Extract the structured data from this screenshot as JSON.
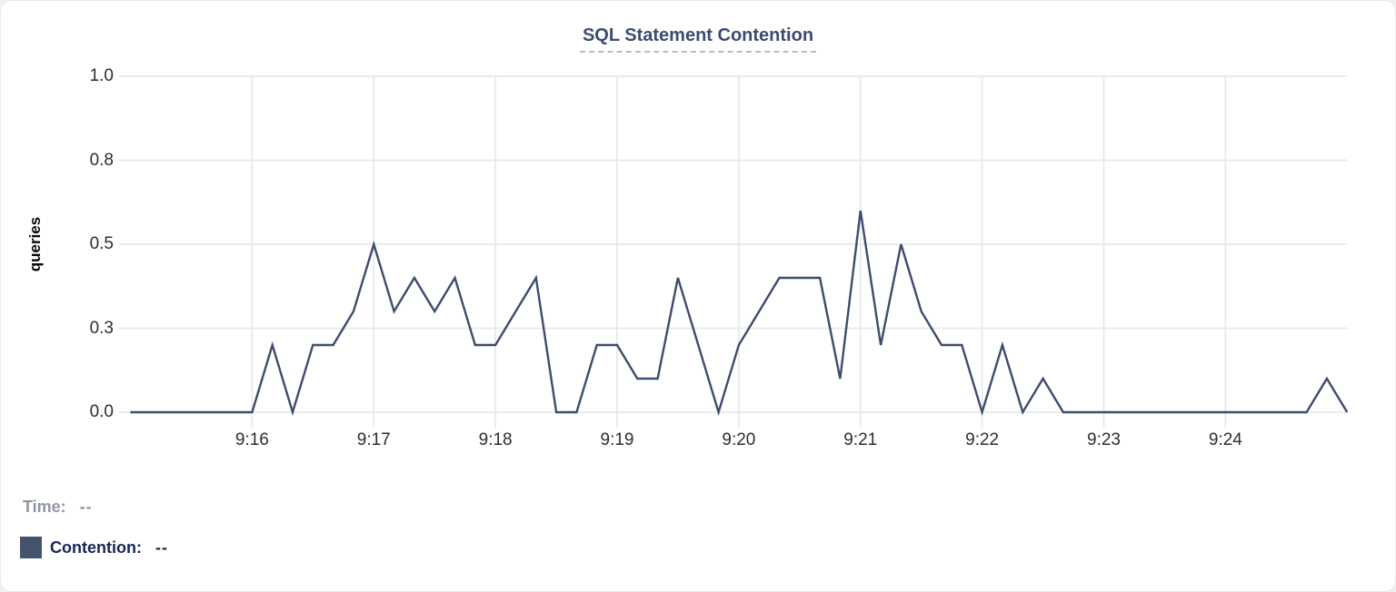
{
  "title": "SQL Statement Contention",
  "y_axis": {
    "label": "queries",
    "ticks": [
      {
        "label": "1.0",
        "value": 1.0
      },
      {
        "label": "0.8",
        "value": 0.75
      },
      {
        "label": "0.5",
        "value": 0.5
      },
      {
        "label": "0.3",
        "value": 0.25
      },
      {
        "label": "0.0",
        "value": 0.0
      }
    ]
  },
  "x_axis": {
    "total_minutes": 10,
    "start": "9:15",
    "end": "9:25",
    "ticks": [
      {
        "label": "9:16",
        "minute": 1
      },
      {
        "label": "9:17",
        "minute": 2
      },
      {
        "label": "9:18",
        "minute": 3
      },
      {
        "label": "9:19",
        "minute": 4
      },
      {
        "label": "9:20",
        "minute": 5
      },
      {
        "label": "9:21",
        "minute": 6
      },
      {
        "label": "9:22",
        "minute": 7
      },
      {
        "label": "9:23",
        "minute": 8
      },
      {
        "label": "9:24",
        "minute": 9
      }
    ]
  },
  "legend": {
    "time_label": "Time:",
    "time_value": "--",
    "contention_label": "Contention:",
    "contention_value": "--"
  },
  "colors": {
    "line": "#3e4c6c",
    "swatch": "#44536e",
    "grid": "#e8e8e8",
    "title": "#3b4c70",
    "tick_text": "#2d2d2d",
    "time_text": "#9096a0",
    "contention_text": "#172554"
  },
  "chart_data": {
    "type": "line",
    "title": "SQL Statement Contention",
    "xlabel": "",
    "ylabel": "queries",
    "ylim": [
      0,
      1.0
    ],
    "x_start": "9:15:00",
    "x_end": "9:25:00",
    "interval_seconds": 10,
    "grid": true,
    "legend_position": "bottom-left",
    "x": [
      "9:15:00",
      "9:15:10",
      "9:15:20",
      "9:15:30",
      "9:15:40",
      "9:15:50",
      "9:16:00",
      "9:16:10",
      "9:16:20",
      "9:16:30",
      "9:16:40",
      "9:16:50",
      "9:17:00",
      "9:17:10",
      "9:17:20",
      "9:17:30",
      "9:17:40",
      "9:17:50",
      "9:18:00",
      "9:18:10",
      "9:18:20",
      "9:18:30",
      "9:18:40",
      "9:18:50",
      "9:19:00",
      "9:19:10",
      "9:19:20",
      "9:19:30",
      "9:19:40",
      "9:19:50",
      "9:20:00",
      "9:20:10",
      "9:20:20",
      "9:20:30",
      "9:20:40",
      "9:20:50",
      "9:21:00",
      "9:21:10",
      "9:21:20",
      "9:21:30",
      "9:21:40",
      "9:21:50",
      "9:22:00",
      "9:22:10",
      "9:22:20",
      "9:22:30",
      "9:22:40",
      "9:22:50",
      "9:23:00",
      "9:23:10",
      "9:23:20",
      "9:23:30",
      "9:23:40",
      "9:23:50",
      "9:24:00",
      "9:24:10",
      "9:24:20",
      "9:24:30",
      "9:24:40",
      "9:24:50",
      "9:25:00"
    ],
    "series": [
      {
        "name": "Contention",
        "values": [
          0,
          0,
          0,
          0,
          0,
          0,
          0,
          0.2,
          0,
          0.2,
          0.2,
          0.3,
          0.5,
          0.3,
          0.4,
          0.3,
          0.4,
          0.2,
          0.2,
          0.3,
          0.4,
          0,
          0,
          0.2,
          0.2,
          0.1,
          0.1,
          0.4,
          0.2,
          0,
          0.2,
          0.3,
          0.4,
          0.4,
          0.4,
          0.1,
          0.6,
          0.2,
          0.5,
          0.3,
          0.2,
          0.2,
          0,
          0.2,
          0,
          0.1,
          0,
          0,
          0,
          0,
          0,
          0,
          0,
          0,
          0,
          0,
          0,
          0,
          0,
          0.1,
          0
        ]
      }
    ]
  }
}
